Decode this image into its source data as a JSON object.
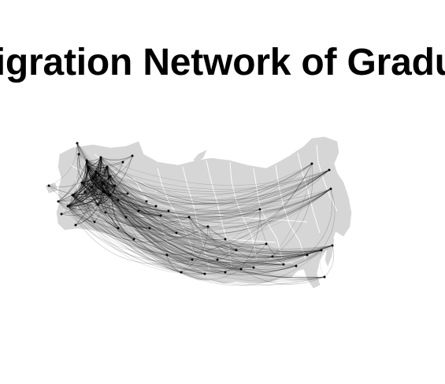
{
  "title": "Migration Network of Graduates",
  "colors": {
    "land": "#d6d6d6",
    "border": "#ffffff",
    "edge": "#000000",
    "node": "#000000",
    "background": "#ffffff"
  },
  "map": {
    "region": "Russia",
    "projection": "conic",
    "style": "gray landmass with white internal region borders"
  },
  "network": {
    "edge_style": "curved arcs",
    "node_style": "small dark points",
    "densest_cluster": "western Russia"
  }
}
